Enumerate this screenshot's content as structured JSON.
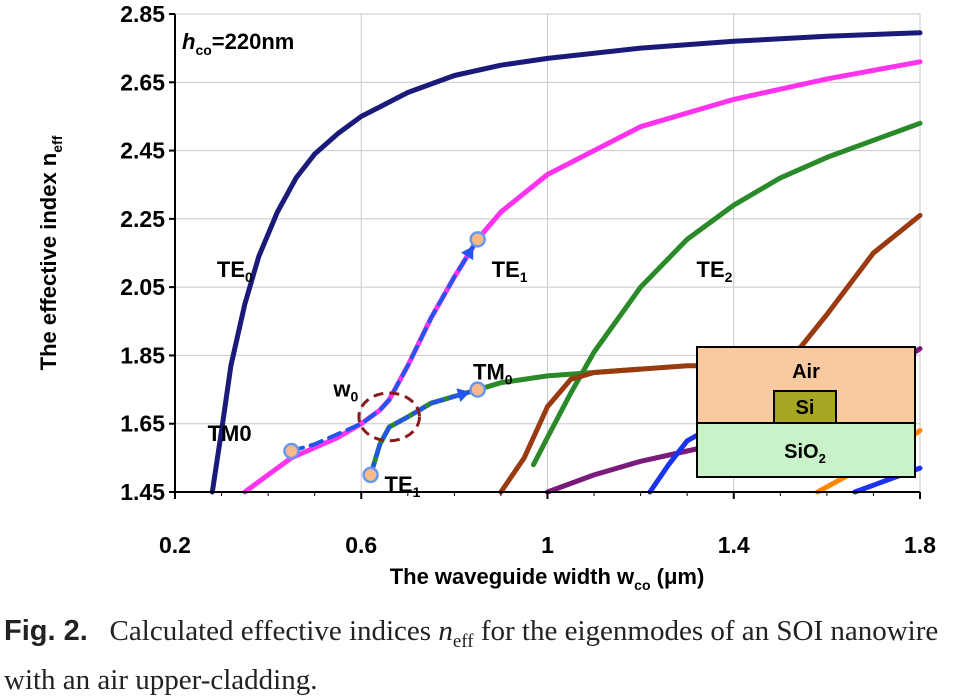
{
  "chart_data": {
    "type": "line",
    "xlabel_main": "The waveguide width w",
    "xlabel_sub": "co",
    "xlabel_tail": " (μm)",
    "ylabel_main": "The effective index n",
    "ylabel_sub": "eff",
    "xlim": [
      0.2,
      1.8
    ],
    "ylim": [
      1.45,
      2.85
    ],
    "xticks": [
      "0.2",
      "0.6",
      "1",
      "1.4",
      "1.8"
    ],
    "yticks": [
      "1.45",
      "1.65",
      "1.85",
      "2.05",
      "2.25",
      "2.45",
      "2.65",
      "2.85"
    ],
    "param_label": {
      "italic": "h",
      "sub": "co",
      "tail": "=220nm"
    },
    "series": [
      {
        "name": "TE0",
        "color": "#1a1a7a",
        "x": [
          0.28,
          0.3,
          0.32,
          0.35,
          0.38,
          0.42,
          0.46,
          0.5,
          0.55,
          0.6,
          0.7,
          0.8,
          0.9,
          1.0,
          1.2,
          1.4,
          1.6,
          1.8
        ],
        "y": [
          1.45,
          1.63,
          1.82,
          2.0,
          2.14,
          2.27,
          2.37,
          2.44,
          2.5,
          2.55,
          2.62,
          2.67,
          2.7,
          2.72,
          2.75,
          2.77,
          2.785,
          2.795
        ]
      },
      {
        "name": "TE1",
        "color": "#ff33ee",
        "x": [
          0.35,
          0.4,
          0.45,
          0.5,
          0.55,
          0.6,
          0.64,
          0.66,
          0.7,
          0.75,
          0.8,
          0.85,
          0.9,
          1.0,
          1.2,
          1.4,
          1.6,
          1.8
        ],
        "y": [
          1.45,
          1.5,
          1.55,
          1.58,
          1.61,
          1.65,
          1.69,
          1.72,
          1.82,
          1.96,
          2.08,
          2.19,
          2.27,
          2.38,
          2.52,
          2.6,
          2.66,
          2.71
        ]
      },
      {
        "name": "TM0",
        "color": "#2a8a2a",
        "x": [
          0.62,
          0.64,
          0.66,
          0.7,
          0.75,
          0.8,
          0.85,
          0.9,
          1.0,
          1.1,
          1.2
        ],
        "y": [
          1.5,
          1.59,
          1.64,
          1.67,
          1.71,
          1.73,
          1.75,
          1.77,
          1.79,
          1.8,
          1.81
        ]
      },
      {
        "name": "TE2",
        "color": "#2a8a2a",
        "x": [
          0.97,
          1.0,
          1.05,
          1.1,
          1.2,
          1.3,
          1.4,
          1.5,
          1.6,
          1.7,
          1.8
        ],
        "y": [
          1.53,
          1.61,
          1.74,
          1.86,
          2.05,
          2.19,
          2.29,
          2.37,
          2.43,
          2.48,
          2.53
        ]
      },
      {
        "name": "brown",
        "color": "#9a3a10",
        "x": [
          0.9,
          0.95,
          1.0,
          1.05,
          1.1,
          1.2,
          1.3,
          1.4,
          1.5,
          1.6,
          1.7,
          1.8
        ],
        "y": [
          1.45,
          1.55,
          1.7,
          1.78,
          1.8,
          1.81,
          1.82,
          1.82,
          1.8,
          1.97,
          2.15,
          2.26
        ]
      },
      {
        "name": "purple",
        "color": "#7a1a7a",
        "x": [
          1.0,
          1.1,
          1.2,
          1.3,
          1.4,
          1.5,
          1.6,
          1.7,
          1.8
        ],
        "y": [
          1.45,
          1.5,
          1.54,
          1.57,
          1.6,
          1.64,
          1.7,
          1.78,
          1.87
        ]
      },
      {
        "name": "blue",
        "color": "#1a33ee",
        "x": [
          1.22,
          1.26,
          1.3,
          1.34,
          1.38,
          1.42,
          1.46,
          1.5
        ],
        "y": [
          1.45,
          1.53,
          1.6,
          1.63,
          1.64,
          1.65,
          1.66,
          1.67
        ]
      },
      {
        "name": "orange",
        "color": "#ff8800",
        "x": [
          1.58,
          1.62,
          1.66,
          1.7,
          1.74,
          1.78,
          1.8
        ],
        "y": [
          1.45,
          1.48,
          1.51,
          1.55,
          1.58,
          1.61,
          1.63
        ]
      },
      {
        "name": "blue2",
        "color": "#1a33ee",
        "x": [
          1.66,
          1.7,
          1.74,
          1.78,
          1.8
        ],
        "y": [
          1.45,
          1.47,
          1.49,
          1.51,
          1.52
        ]
      }
    ],
    "conversion_paths": [
      {
        "color": "#2255ee",
        "x": [
          0.45,
          0.5,
          0.55,
          0.6,
          0.64,
          0.66,
          0.7,
          0.75,
          0.8,
          0.85
        ],
        "y": [
          1.57,
          1.59,
          1.62,
          1.65,
          1.69,
          1.72,
          1.82,
          1.96,
          2.08,
          2.19
        ]
      },
      {
        "color": "#2255ee",
        "x": [
          0.62,
          0.64,
          0.66,
          0.7,
          0.75,
          0.8,
          0.85
        ],
        "y": [
          1.5,
          1.59,
          1.64,
          1.67,
          1.71,
          1.73,
          1.75
        ]
      }
    ],
    "markers": [
      {
        "x": 0.45,
        "y": 1.57
      },
      {
        "x": 0.85,
        "y": 2.19
      },
      {
        "x": 0.62,
        "y": 1.5
      },
      {
        "x": 0.85,
        "y": 1.75
      }
    ],
    "ellipse": {
      "cx": 0.66,
      "cy": 1.67,
      "rx": 0.065,
      "ry": 0.07
    },
    "annotations": [
      {
        "main": "TE",
        "sub": "0",
        "x": 0.29,
        "y": 2.08
      },
      {
        "main": "TE",
        "sub": "1",
        "x": 0.88,
        "y": 2.08
      },
      {
        "main": "TE",
        "sub": "2",
        "x": 1.32,
        "y": 2.08
      },
      {
        "main": "TM",
        "sub": "0",
        "x": 0.84,
        "y": 1.78
      },
      {
        "main": "TM0",
        "sub": "",
        "x": 0.27,
        "y": 1.6
      },
      {
        "main": "w",
        "sub": "0",
        "x": 0.54,
        "y": 1.73
      },
      {
        "main": "TE",
        "sub": "1",
        "x": 0.65,
        "y": 1.45
      }
    ],
    "inset": {
      "top": "Air",
      "core": "Si",
      "bottom_main": "SiO",
      "bottom_sub": "2",
      "top_color": "#f9c9a0",
      "bottom_color": "#c9f2c9",
      "core_color": "#a6a622"
    }
  },
  "caption": {
    "label": "Fig. 2.",
    "text_1": "Calculated effective indices ",
    "n_italic": "n",
    "n_sub": "eff",
    "text_2": " for the eigenmodes of an SOI nanowire with an air upper-cladding."
  }
}
